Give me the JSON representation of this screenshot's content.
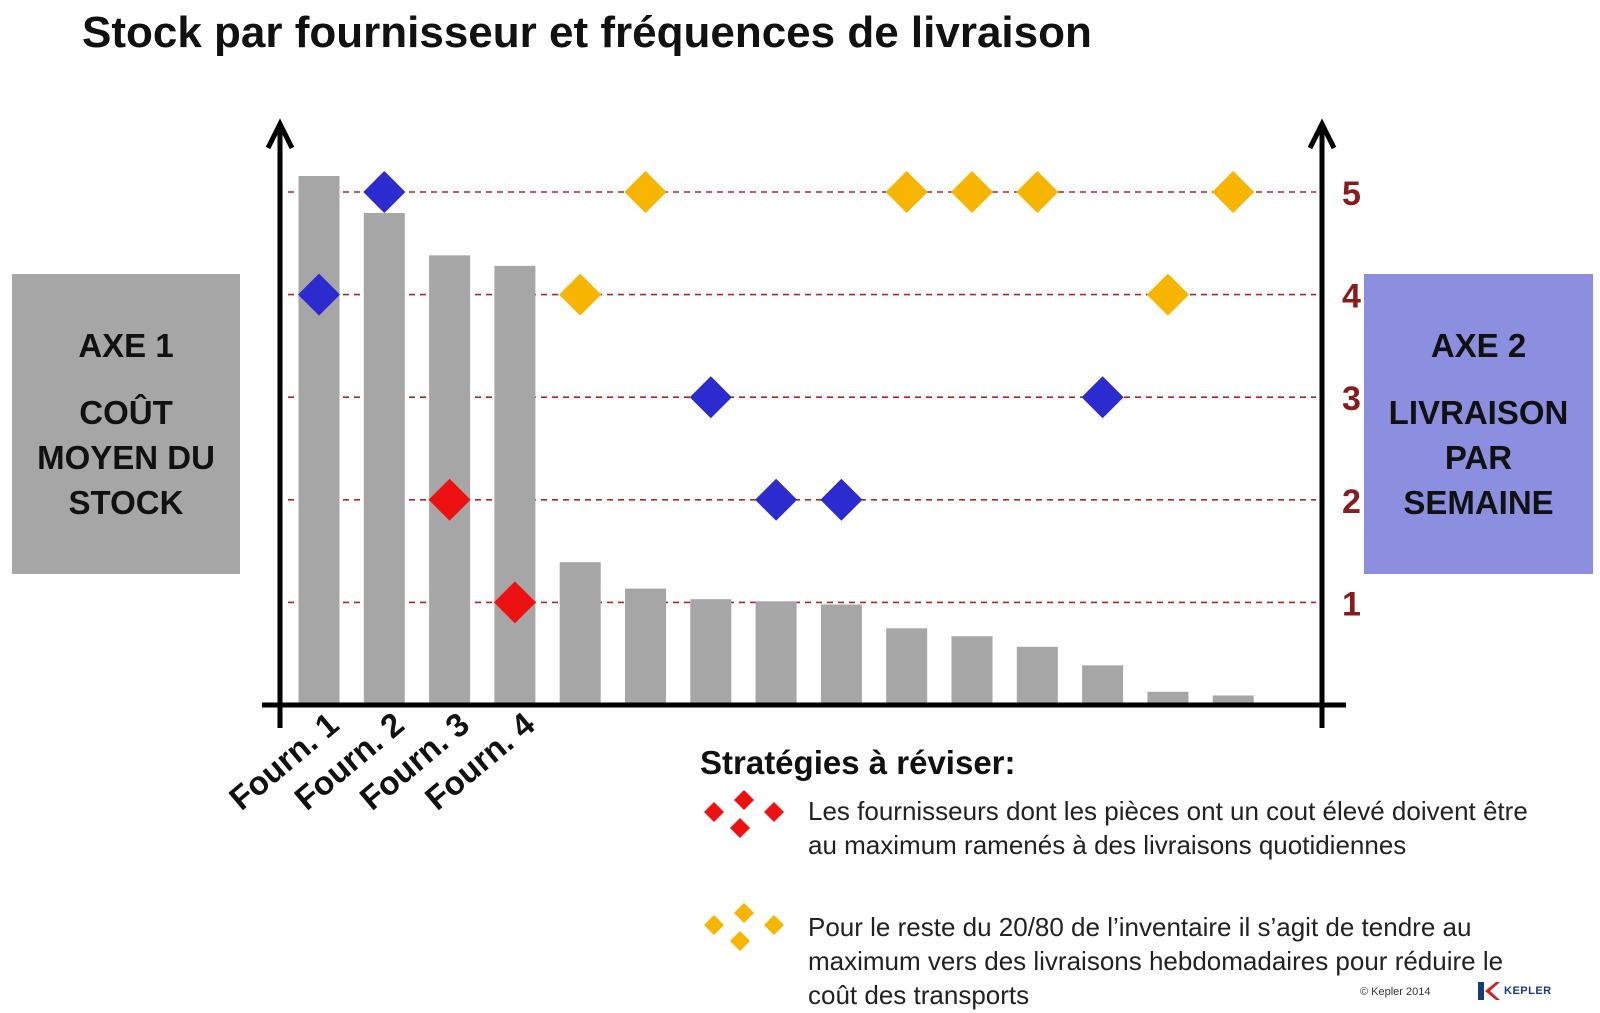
{
  "title": "Stock par fournisseur et fréquences de livraison",
  "axis1": {
    "name": "AXE 1",
    "lines": [
      "COÛT",
      "MOYEN DU",
      "STOCK"
    ]
  },
  "axis2": {
    "name": "AXE 2",
    "lines": [
      "LIVRAISON",
      "PAR",
      "SEMAINE"
    ]
  },
  "chart_data": {
    "type": "bar",
    "categories": [
      "Fourn. 1",
      "Fourn. 2",
      "Fourn. 3",
      "Fourn. 4",
      "",
      "",
      "",
      "",
      "",
      "",
      "",
      "",
      "",
      "",
      ""
    ],
    "bar_values": [
      100,
      93,
      85,
      83,
      27,
      22,
      20,
      19.6,
      19,
      14.5,
      13,
      11,
      7.5,
      2.5,
      1.8
    ],
    "bar_color": "#a6a6a6",
    "yleft": {
      "label": "COÛT MOYEN DU STOCK",
      "ticks": [],
      "ylim": [
        0,
        100
      ]
    },
    "yright": {
      "label": "LIVRAISON PAR SEMAINE",
      "ticks": [
        1,
        2,
        3,
        4,
        5
      ],
      "ylim": [
        0,
        5.6
      ],
      "tick_color": "#8b1a1a"
    },
    "gridlines_dashed": [
      1,
      2,
      3,
      4,
      5
    ],
    "gridline_color": "#a52a2a",
    "markers": [
      {
        "bar": 1,
        "freq": 4,
        "color": "#2b2bd0"
      },
      {
        "bar": 2,
        "freq": 5,
        "color": "#2b2bd0"
      },
      {
        "bar": 3,
        "freq": 2,
        "color": "#ee1111"
      },
      {
        "bar": 4,
        "freq": 1,
        "color": "#ee1111"
      },
      {
        "bar": 5,
        "freq": 4,
        "color": "#f7b500"
      },
      {
        "bar": 6,
        "freq": 5,
        "color": "#f7b500"
      },
      {
        "bar": 7,
        "freq": 3,
        "color": "#2b2bd0"
      },
      {
        "bar": 8,
        "freq": 2,
        "color": "#2b2bd0"
      },
      {
        "bar": 9,
        "freq": 2,
        "color": "#2b2bd0"
      },
      {
        "bar": 10,
        "freq": 5,
        "color": "#f7b500"
      },
      {
        "bar": 11,
        "freq": 5,
        "color": "#f7b500"
      },
      {
        "bar": 12,
        "freq": 5,
        "color": "#f7b500"
      },
      {
        "bar": 13,
        "freq": 3,
        "color": "#2b2bd0"
      },
      {
        "bar": 14,
        "freq": 4,
        "color": "#f7b500"
      },
      {
        "bar": 15,
        "freq": 5,
        "color": "#f7b500"
      }
    ]
  },
  "legend": {
    "title": "Stratégies à réviser:",
    "items": [
      {
        "icon": "red-diamonds-icon",
        "color": "#ee1111",
        "text": "Les fournisseurs dont les pièces ont un cout élevé doivent être au maximum  ramenés à des livraisons quotidiennes"
      },
      {
        "icon": "yellow-diamonds-icon",
        "color": "#f7b500",
        "text": "Pour le reste du 20/80 de l’inventaire il s’agit de tendre au maximum  vers des livraisons hebdomadaires pour réduire le coût des transports"
      }
    ]
  },
  "footer": {
    "credit": "© Kepler 2014",
    "brand": "KEPLER"
  }
}
